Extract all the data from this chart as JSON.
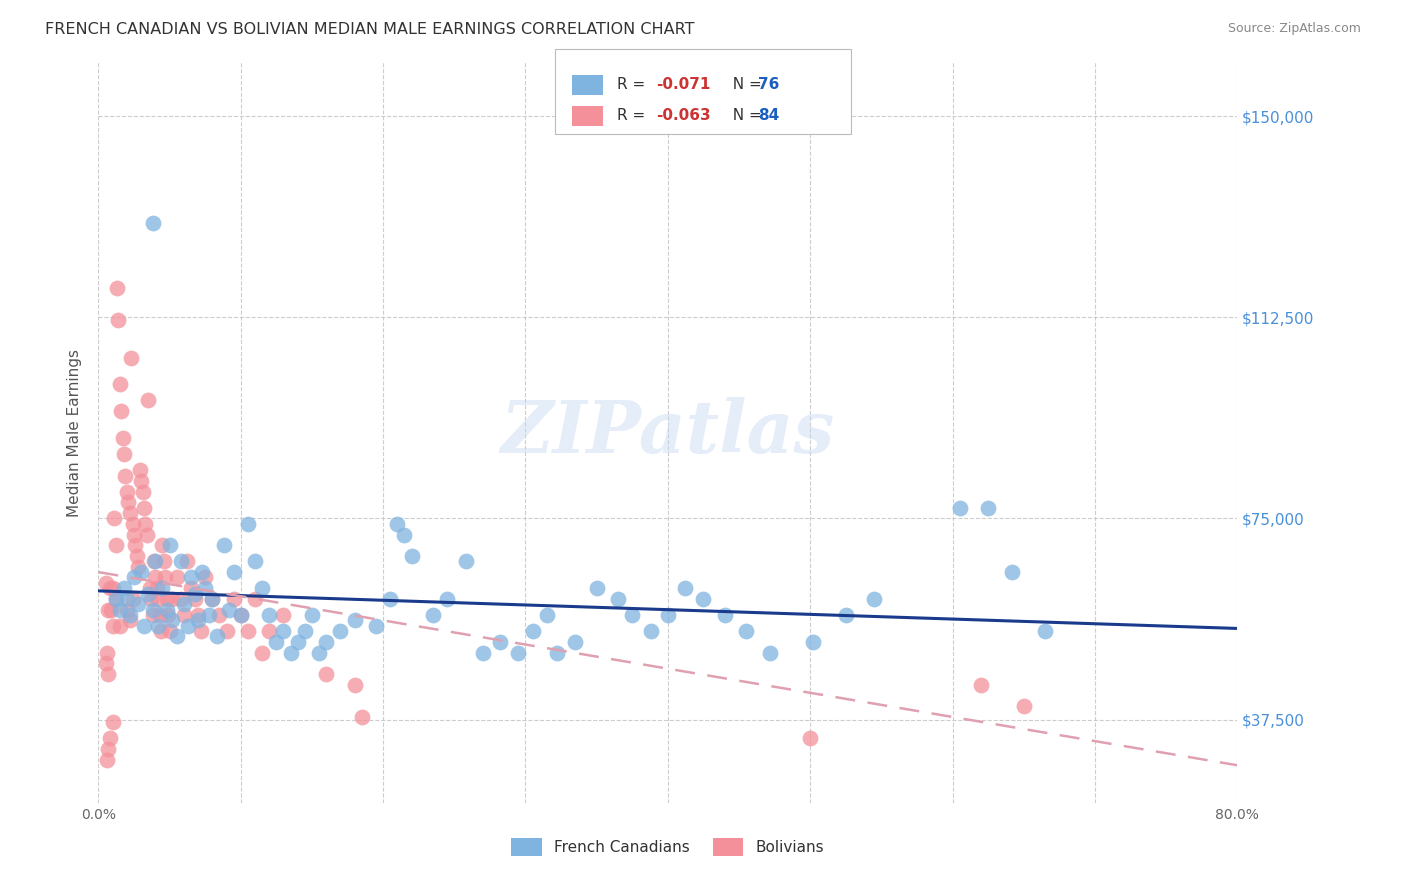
{
  "title": "FRENCH CANADIAN VS BOLIVIAN MEDIAN MALE EARNINGS CORRELATION CHART",
  "source": "Source: ZipAtlas.com",
  "ylabel": "Median Male Earnings",
  "xlim": [
    0.0,
    0.8
  ],
  "ylim": [
    22000,
    160000
  ],
  "yticks": [
    37500,
    75000,
    112500,
    150000
  ],
  "ytick_labels": [
    "$37,500",
    "$75,000",
    "$112,500",
    "$150,000"
  ],
  "xticks": [
    0.0,
    0.1,
    0.2,
    0.3,
    0.4,
    0.5,
    0.6,
    0.7,
    0.8
  ],
  "xtick_labels": [
    "0.0%",
    "",
    "",
    "",
    "",
    "",
    "",
    "",
    "80.0%"
  ],
  "watermark": "ZIPatlas",
  "title_color": "#333333",
  "source_color": "#888888",
  "blue_color": "#7fb3e0",
  "pink_color": "#f4909a",
  "blue_line_color": "#1a3a8c",
  "pink_line_color": "#e0a0b0",
  "ylabel_color": "#555555",
  "right_label_color": "#4a90d9",
  "fc_scatter": [
    [
      0.038,
      130000
    ],
    [
      0.012,
      60000
    ],
    [
      0.015,
      58000
    ],
    [
      0.018,
      62000
    ],
    [
      0.02,
      60000
    ],
    [
      0.022,
      57000
    ],
    [
      0.025,
      64000
    ],
    [
      0.028,
      59000
    ],
    [
      0.03,
      65000
    ],
    [
      0.032,
      55000
    ],
    [
      0.035,
      61000
    ],
    [
      0.038,
      58000
    ],
    [
      0.04,
      67000
    ],
    [
      0.042,
      55000
    ],
    [
      0.045,
      62000
    ],
    [
      0.048,
      58000
    ],
    [
      0.05,
      70000
    ],
    [
      0.052,
      56000
    ],
    [
      0.055,
      53000
    ],
    [
      0.058,
      67000
    ],
    [
      0.06,
      59000
    ],
    [
      0.063,
      55000
    ],
    [
      0.065,
      64000
    ],
    [
      0.068,
      61000
    ],
    [
      0.07,
      56000
    ],
    [
      0.073,
      65000
    ],
    [
      0.075,
      62000
    ],
    [
      0.078,
      57000
    ],
    [
      0.08,
      60000
    ],
    [
      0.083,
      53000
    ],
    [
      0.088,
      70000
    ],
    [
      0.092,
      58000
    ],
    [
      0.095,
      65000
    ],
    [
      0.1,
      57000
    ],
    [
      0.105,
      74000
    ],
    [
      0.11,
      67000
    ],
    [
      0.115,
      62000
    ],
    [
      0.12,
      57000
    ],
    [
      0.125,
      52000
    ],
    [
      0.13,
      54000
    ],
    [
      0.135,
      50000
    ],
    [
      0.14,
      52000
    ],
    [
      0.145,
      54000
    ],
    [
      0.15,
      57000
    ],
    [
      0.155,
      50000
    ],
    [
      0.16,
      52000
    ],
    [
      0.17,
      54000
    ],
    [
      0.18,
      56000
    ],
    [
      0.195,
      55000
    ],
    [
      0.205,
      60000
    ],
    [
      0.21,
      74000
    ],
    [
      0.215,
      72000
    ],
    [
      0.22,
      68000
    ],
    [
      0.235,
      57000
    ],
    [
      0.245,
      60000
    ],
    [
      0.258,
      67000
    ],
    [
      0.27,
      50000
    ],
    [
      0.282,
      52000
    ],
    [
      0.295,
      50000
    ],
    [
      0.305,
      54000
    ],
    [
      0.315,
      57000
    ],
    [
      0.322,
      50000
    ],
    [
      0.335,
      52000
    ],
    [
      0.35,
      62000
    ],
    [
      0.365,
      60000
    ],
    [
      0.375,
      57000
    ],
    [
      0.388,
      54000
    ],
    [
      0.4,
      57000
    ],
    [
      0.412,
      62000
    ],
    [
      0.425,
      60000
    ],
    [
      0.44,
      57000
    ],
    [
      0.455,
      54000
    ],
    [
      0.472,
      50000
    ],
    [
      0.502,
      52000
    ],
    [
      0.525,
      57000
    ],
    [
      0.545,
      60000
    ],
    [
      0.605,
      77000
    ],
    [
      0.625,
      77000
    ],
    [
      0.642,
      65000
    ],
    [
      0.665,
      54000
    ]
  ],
  "bo_scatter": [
    [
      0.005,
      63000
    ],
    [
      0.007,
      58000
    ],
    [
      0.008,
      62000
    ],
    [
      0.009,
      58000
    ],
    [
      0.01,
      55000
    ],
    [
      0.011,
      75000
    ],
    [
      0.012,
      70000
    ],
    [
      0.013,
      118000
    ],
    [
      0.014,
      112000
    ],
    [
      0.015,
      100000
    ],
    [
      0.016,
      95000
    ],
    [
      0.017,
      90000
    ],
    [
      0.018,
      87000
    ],
    [
      0.019,
      83000
    ],
    [
      0.02,
      80000
    ],
    [
      0.021,
      78000
    ],
    [
      0.022,
      76000
    ],
    [
      0.023,
      105000
    ],
    [
      0.024,
      74000
    ],
    [
      0.025,
      72000
    ],
    [
      0.026,
      70000
    ],
    [
      0.027,
      68000
    ],
    [
      0.028,
      66000
    ],
    [
      0.029,
      84000
    ],
    [
      0.03,
      82000
    ],
    [
      0.031,
      80000
    ],
    [
      0.032,
      77000
    ],
    [
      0.033,
      74000
    ],
    [
      0.034,
      72000
    ],
    [
      0.035,
      97000
    ],
    [
      0.036,
      62000
    ],
    [
      0.037,
      60000
    ],
    [
      0.038,
      57000
    ],
    [
      0.039,
      67000
    ],
    [
      0.04,
      64000
    ],
    [
      0.041,
      62000
    ],
    [
      0.042,
      60000
    ],
    [
      0.043,
      57000
    ],
    [
      0.044,
      54000
    ],
    [
      0.045,
      70000
    ],
    [
      0.046,
      67000
    ],
    [
      0.047,
      64000
    ],
    [
      0.048,
      60000
    ],
    [
      0.049,
      57000
    ],
    [
      0.05,
      54000
    ],
    [
      0.01,
      62000
    ],
    [
      0.012,
      60000
    ],
    [
      0.015,
      55000
    ],
    [
      0.02,
      58000
    ],
    [
      0.022,
      56000
    ],
    [
      0.024,
      60000
    ],
    [
      0.005,
      48000
    ],
    [
      0.006,
      50000
    ],
    [
      0.007,
      46000
    ],
    [
      0.052,
      60000
    ],
    [
      0.055,
      64000
    ],
    [
      0.058,
      60000
    ],
    [
      0.06,
      57000
    ],
    [
      0.062,
      67000
    ],
    [
      0.065,
      62000
    ],
    [
      0.068,
      60000
    ],
    [
      0.07,
      57000
    ],
    [
      0.072,
      54000
    ],
    [
      0.075,
      64000
    ],
    [
      0.08,
      60000
    ],
    [
      0.085,
      57000
    ],
    [
      0.09,
      54000
    ],
    [
      0.095,
      60000
    ],
    [
      0.1,
      57000
    ],
    [
      0.105,
      54000
    ],
    [
      0.11,
      60000
    ],
    [
      0.115,
      50000
    ],
    [
      0.12,
      54000
    ],
    [
      0.13,
      57000
    ],
    [
      0.16,
      46000
    ],
    [
      0.18,
      44000
    ],
    [
      0.185,
      38000
    ],
    [
      0.008,
      34000
    ],
    [
      0.01,
      37000
    ],
    [
      0.006,
      30000
    ],
    [
      0.007,
      32000
    ],
    [
      0.62,
      44000
    ],
    [
      0.65,
      40000
    ],
    [
      0.5,
      34000
    ]
  ]
}
